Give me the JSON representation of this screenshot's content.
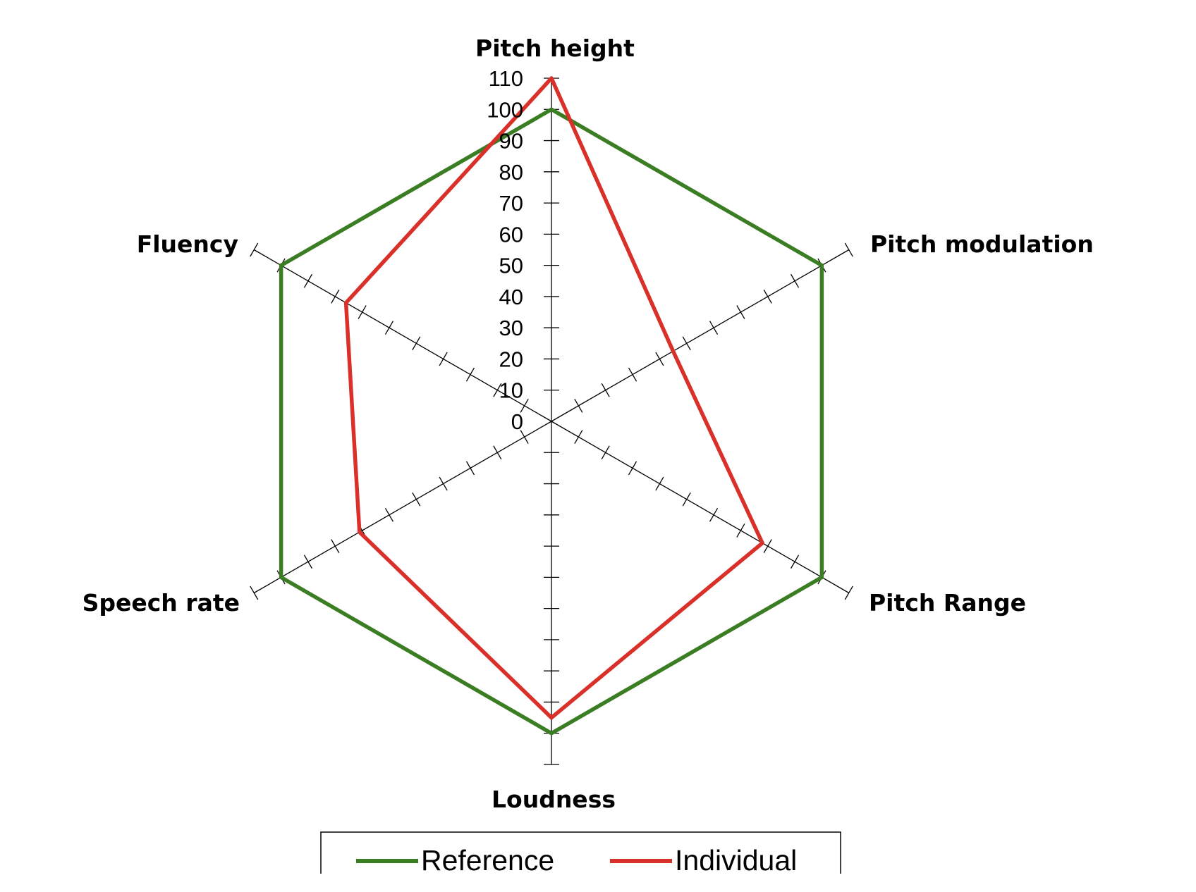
{
  "chart_data": {
    "type": "radar",
    "axes": [
      "Pitch height",
      "Pitch modulation",
      "Pitch Range",
      "Loudness",
      "Speech rate",
      "Fluency"
    ],
    "scale": {
      "min": 0,
      "max": 110,
      "step": 10
    },
    "tick_labels": [
      "0",
      "10",
      "20",
      "30",
      "40",
      "50",
      "60",
      "70",
      "80",
      "90",
      "100",
      "110"
    ],
    "series": [
      {
        "name": "Reference",
        "color": "#3a7d23",
        "values": [
          100,
          100,
          100,
          100,
          100,
          100
        ]
      },
      {
        "name": "Individual",
        "color": "#d9302a",
        "values": [
          110,
          45,
          78,
          95,
          71,
          76
        ]
      }
    ],
    "legend": {
      "position": "bottom",
      "entries": [
        "Reference",
        "Individual"
      ]
    }
  }
}
